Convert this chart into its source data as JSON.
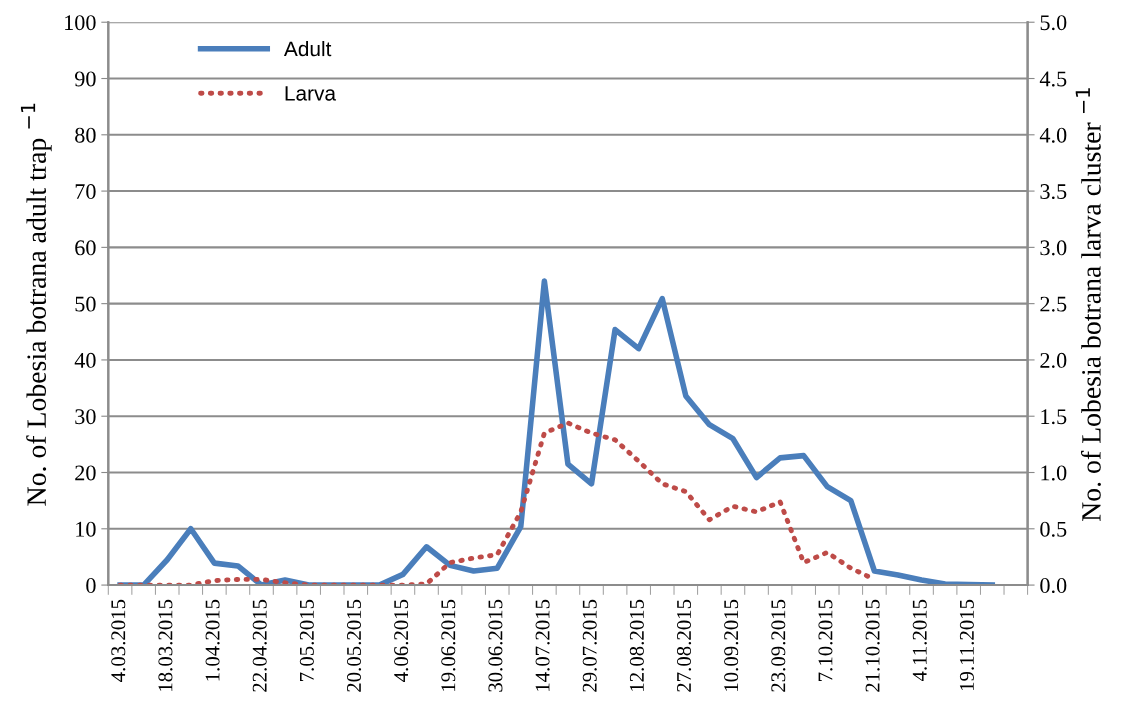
{
  "chart_data": {
    "type": "line",
    "categories": [
      "4.03.2015",
      null,
      "18.03.2015",
      null,
      "1.04.2015",
      null,
      "22.04.2015",
      null,
      "7.05.2015",
      null,
      "20.05.2015",
      null,
      "4.06.2015",
      null,
      "19.06.2015",
      null,
      "30.06.2015",
      null,
      "14.07.2015",
      null,
      "29.07.2015",
      null,
      "12.08.2015",
      null,
      "27.08.2015",
      null,
      "10.09.2015",
      null,
      "23.09.2015",
      null,
      "7.10.2015",
      null,
      "21.10.2015",
      null,
      "4.11.2015",
      null,
      "19.11.2015",
      null,
      null
    ],
    "series": [
      {
        "name": "Adult",
        "color": "#4a7ebb",
        "line_style": "solid",
        "values": [
          0,
          0,
          4.5,
          10,
          3.9,
          3.4,
          0,
          0.9,
          0,
          0,
          0,
          0,
          1.9,
          6.8,
          3.5,
          2.5,
          3.0,
          10.4,
          54,
          21.5,
          18,
          45.4,
          42,
          50.9,
          33.6,
          28.5,
          26,
          19.1,
          22.6,
          23,
          17.5,
          15,
          2.5,
          1.8,
          0.9,
          0.2,
          0.1,
          0,
          null
        ]
      },
      {
        "name": "Larva",
        "color": "#be4b48",
        "line_style": "dotted",
        "axis": "y2",
        "values": [
          0,
          0,
          0,
          0,
          0.04,
          0.05,
          0.05,
          0.02,
          0,
          0,
          0,
          0,
          0,
          0.01,
          0.2,
          0.24,
          0.27,
          0.65,
          1.35,
          1.44,
          1.35,
          1.29,
          1.1,
          0.9,
          0.83,
          0.58,
          0.7,
          0.65,
          0.74,
          0.2,
          0.29,
          0.15,
          0.05,
          null,
          null,
          null,
          null,
          null,
          null
        ]
      }
    ],
    "ylabel": "No. of Lobesia botrana adult trap $^{−1}$",
    "y2label": "No. of Lobesia botrana larva cluster $^{−1}$",
    "ylim": [
      0,
      100
    ],
    "yticks": [
      0,
      10,
      20,
      30,
      40,
      50,
      60,
      70,
      80,
      90,
      100
    ],
    "y2lim": [
      0,
      5
    ],
    "y2ticks": [
      {
        "value": 0,
        "label": "0.0"
      },
      {
        "value": 0.5,
        "label": "0.5"
      },
      {
        "value": 1,
        "label": "1.0"
      },
      {
        "value": 1.5,
        "label": "1.5"
      },
      {
        "value": 2,
        "label": "2.0"
      },
      {
        "value": 2.5,
        "label": "2.5"
      },
      {
        "value": 3,
        "label": "3.0"
      },
      {
        "value": 3.5,
        "label": "3.5"
      },
      {
        "value": 4,
        "label": "4.0"
      },
      {
        "value": 4.5,
        "label": "4.5"
      },
      {
        "value": 5,
        "label": "5.0"
      }
    ],
    "grid": "y",
    "legend": "top left",
    "marker": "none"
  }
}
